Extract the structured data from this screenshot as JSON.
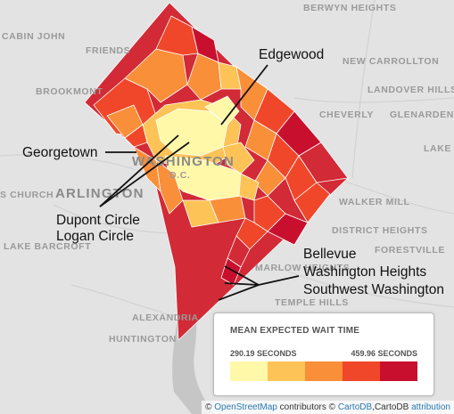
{
  "places": {
    "berwyn_heights": "BERWYN HEIGHTS",
    "cabin_john": "CABIN JOHN",
    "friendship_village": "FRIENDS",
    "new_carrollton": "NEW CARROLLTON",
    "landover_hills": "LANDOVER HILLS",
    "brookmont": "BROOKMONT",
    "cheverly": "CHEVERLY",
    "glenarden": "GLENARDEN",
    "lake_arbor": "LAKE A",
    "arlington": "ARLINGTON",
    "washington": "WASHINGTON",
    "dc": "D.C.",
    "church": "S CHURCH",
    "lake_barcroft": "LAKE BARCROFT",
    "walker_mill": "WALKER MILL",
    "district_heights": "DISTRICT HEIGHTS",
    "forestville": "FORESTVILLE",
    "marlow_heights": "MARLOW HEIGHTS",
    "temple_hills": "TEMPLE HILLS",
    "alexandria": "ALEXANDRIA",
    "huntington": "HUNTINGTON"
  },
  "callouts": {
    "edgewood": "Edgewood",
    "georgetown": "Georgetown",
    "dupont": "Dupont Circle",
    "logan": "Logan Circle",
    "bellevue": "Bellevue",
    "washington_heights": "Washington Heights",
    "southwest": "Southwest Washington"
  },
  "legend": {
    "title": "MEAN EXPECTED WAIT TIME",
    "min_label": "290.19 SECONDS",
    "max_label": "459.96 SECONDS",
    "colors": [
      "#fff8a8",
      "#fdc356",
      "#fa8f3a",
      "#f0472a",
      "#c8102e"
    ]
  },
  "attribution": {
    "prefix": "© ",
    "osm": "OpenStreetMap",
    "middle": " contributors © ",
    "cartodb": "CartoDB",
    "sep": ",CartoDB ",
    "attr": "attribution"
  },
  "colors": {
    "water": "#c2c2c2",
    "land": "#e3e3e3",
    "boundary": "#ffffff"
  }
}
